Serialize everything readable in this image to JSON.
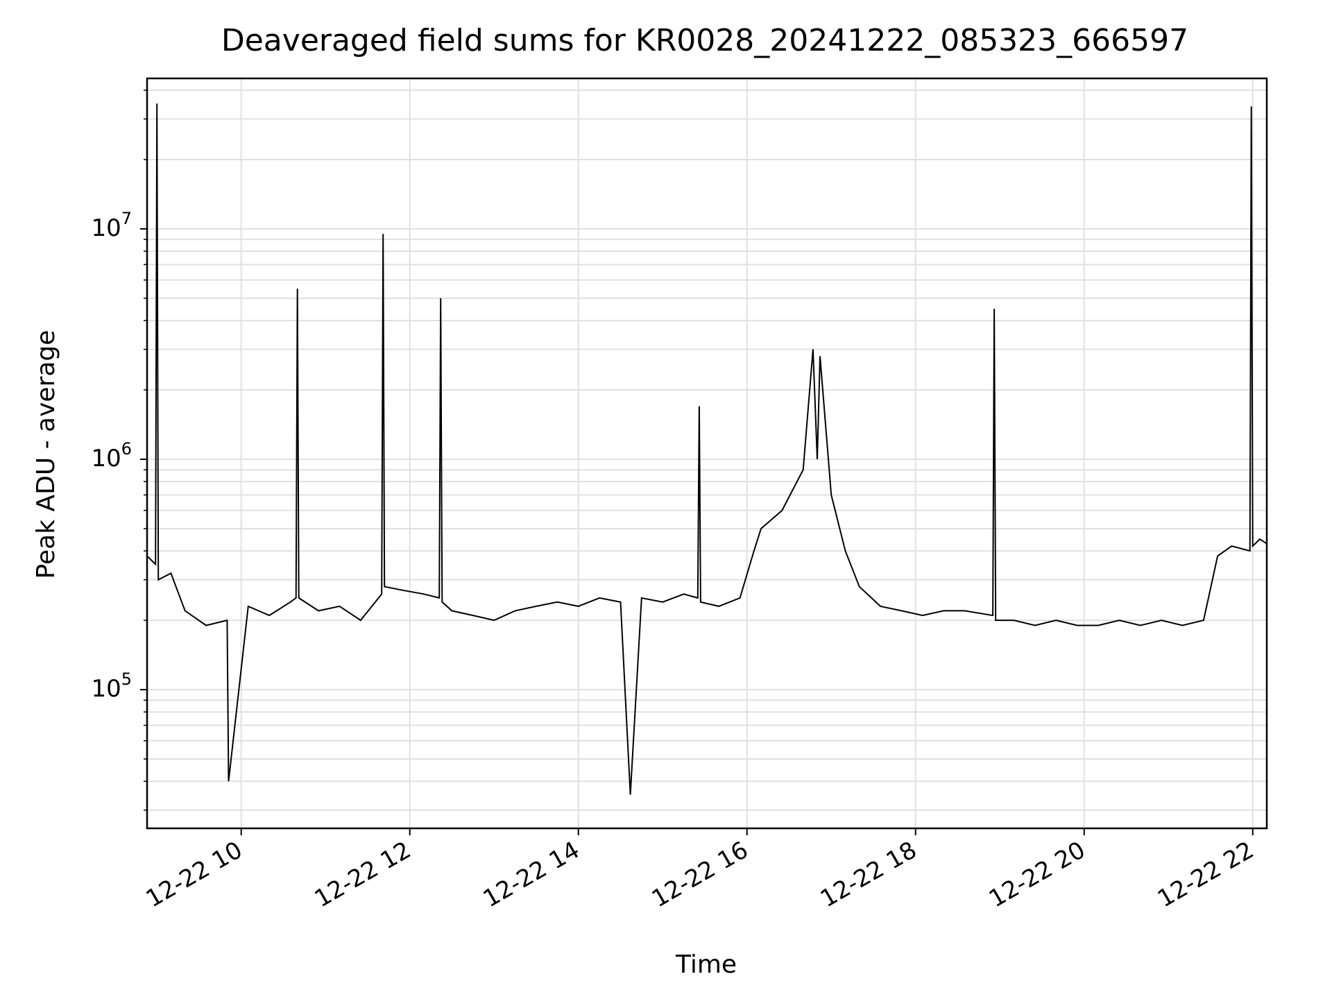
{
  "chart_data": {
    "type": "line",
    "title": "Deaveraged field sums for KR0028_20241222_085323_666597",
    "xlabel": "Time",
    "ylabel": "Peak ADU - average",
    "xscale": "time",
    "yscale": "log",
    "xlim": [
      "2024-12-22 08:53",
      "2024-12-22 22:10"
    ],
    "ylim": [
      25000,
      45000000
    ],
    "grid": true,
    "line_color": "#000000",
    "grid_color": "#e0e0e0",
    "x_ticks": [
      "12-22 10",
      "12-22 12",
      "12-22 14",
      "12-22 16",
      "12-22 18",
      "12-22 20",
      "12-22 22"
    ],
    "x_tick_times": [
      "2024-12-22 10:00",
      "2024-12-22 12:00",
      "2024-12-22 14:00",
      "2024-12-22 16:00",
      "2024-12-22 18:00",
      "2024-12-22 20:00",
      "2024-12-22 22:00"
    ],
    "y_ticks": [
      {
        "base": "10",
        "exp": "5",
        "value": 100000
      },
      {
        "base": "10",
        "exp": "6",
        "value": 1000000
      },
      {
        "base": "10",
        "exp": "7",
        "value": 10000000
      }
    ],
    "series": [
      {
        "x": [
          "2024-12-22 08:53",
          "2024-12-22 08:59",
          "2024-12-22 09:00",
          "2024-12-22 09:01",
          "2024-12-22 09:10",
          "2024-12-22 09:20",
          "2024-12-22 09:35",
          "2024-12-22 09:50",
          "2024-12-22 09:51",
          "2024-12-22 10:05",
          "2024-12-22 10:20",
          "2024-12-22 10:35",
          "2024-12-22 10:39",
          "2024-12-22 10:40",
          "2024-12-22 10:41",
          "2024-12-22 10:55",
          "2024-12-22 11:10",
          "2024-12-22 11:25",
          "2024-12-22 11:40",
          "2024-12-22 11:41",
          "2024-12-22 11:42",
          "2024-12-22 11:55",
          "2024-12-22 12:10",
          "2024-12-22 12:21",
          "2024-12-22 12:22",
          "2024-12-22 12:23",
          "2024-12-22 12:30",
          "2024-12-22 12:45",
          "2024-12-22 13:00",
          "2024-12-22 13:15",
          "2024-12-22 13:30",
          "2024-12-22 13:45",
          "2024-12-22 14:00",
          "2024-12-22 14:15",
          "2024-12-22 14:30",
          "2024-12-22 14:37",
          "2024-12-22 14:45",
          "2024-12-22 15:00",
          "2024-12-22 15:15",
          "2024-12-22 15:25",
          "2024-12-22 15:26",
          "2024-12-22 15:27",
          "2024-12-22 15:40",
          "2024-12-22 15:55",
          "2024-12-22 16:05",
          "2024-12-22 16:10",
          "2024-12-22 16:25",
          "2024-12-22 16:40",
          "2024-12-22 16:47",
          "2024-12-22 16:50",
          "2024-12-22 16:52",
          "2024-12-22 17:00",
          "2024-12-22 17:10",
          "2024-12-22 17:20",
          "2024-12-22 17:35",
          "2024-12-22 17:50",
          "2024-12-22 18:05",
          "2024-12-22 18:20",
          "2024-12-22 18:35",
          "2024-12-22 18:55",
          "2024-12-22 18:56",
          "2024-12-22 18:57",
          "2024-12-22 19:10",
          "2024-12-22 19:25",
          "2024-12-22 19:40",
          "2024-12-22 19:55",
          "2024-12-22 20:10",
          "2024-12-22 20:25",
          "2024-12-22 20:40",
          "2024-12-22 20:55",
          "2024-12-22 21:10",
          "2024-12-22 21:25",
          "2024-12-22 21:35",
          "2024-12-22 21:45",
          "2024-12-22 21:58",
          "2024-12-22 21:59",
          "2024-12-22 22:00",
          "2024-12-22 22:05",
          "2024-12-22 22:10"
        ],
        "y": [
          380000,
          350000,
          35000000,
          300000,
          320000,
          220000,
          190000,
          200000,
          40000,
          230000,
          210000,
          240000,
          250000,
          5500000,
          250000,
          220000,
          230000,
          200000,
          260000,
          9500000,
          280000,
          270000,
          260000,
          250000,
          5000000,
          240000,
          220000,
          210000,
          200000,
          220000,
          230000,
          240000,
          230000,
          250000,
          240000,
          35000,
          250000,
          240000,
          260000,
          250000,
          1700000,
          240000,
          230000,
          250000,
          400000,
          500000,
          600000,
          900000,
          3000000,
          1000000,
          2800000,
          700000,
          400000,
          280000,
          230000,
          220000,
          210000,
          220000,
          220000,
          210000,
          4500000,
          200000,
          200000,
          190000,
          200000,
          190000,
          190000,
          200000,
          190000,
          200000,
          190000,
          200000,
          380000,
          420000,
          400000,
          34000000,
          420000,
          450000,
          430000
        ]
      }
    ]
  }
}
